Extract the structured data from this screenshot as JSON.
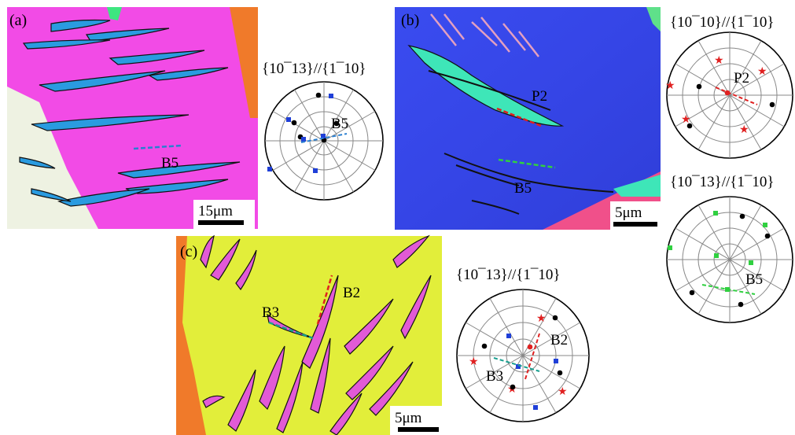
{
  "panels": [
    {
      "id": "a",
      "label": "(a)",
      "scale_bar": "15μm",
      "map_annotations": [
        "B5"
      ],
      "pole_figure": {
        "title": "{10¯13}//{1¯10}",
        "annotations": [
          "B5"
        ]
      }
    },
    {
      "id": "b",
      "label": "(b)",
      "scale_bar": "5μm",
      "map_annotations": [
        "P2",
        "B5"
      ],
      "pole_figures": [
        {
          "title": "{10¯10}//{1¯10}",
          "annotations": [
            "P2"
          ]
        },
        {
          "title": "{10¯13}//{1¯10}",
          "annotations": [
            "B5"
          ]
        }
      ]
    },
    {
      "id": "c",
      "label": "(c)",
      "scale_bar": "5μm",
      "map_annotations": [
        "B3",
        "B2"
      ],
      "pole_figure": {
        "title": "{10¯13}//{1¯10}",
        "annotations": [
          "B2",
          "B3"
        ]
      }
    }
  ],
  "colors": {
    "magenta_grain": "#f24be6",
    "blue_grain": "#3346e8",
    "yellow_grain": "#e2ee3a",
    "twin_blue": "#2a9be0",
    "twin_green": "#3ee6b8",
    "twin_pink": "#e25ad6",
    "line_red": "#e02020",
    "line_blue": "#2a7fd0",
    "line_green": "#30d040",
    "line_teal": "#1a9f8f"
  }
}
